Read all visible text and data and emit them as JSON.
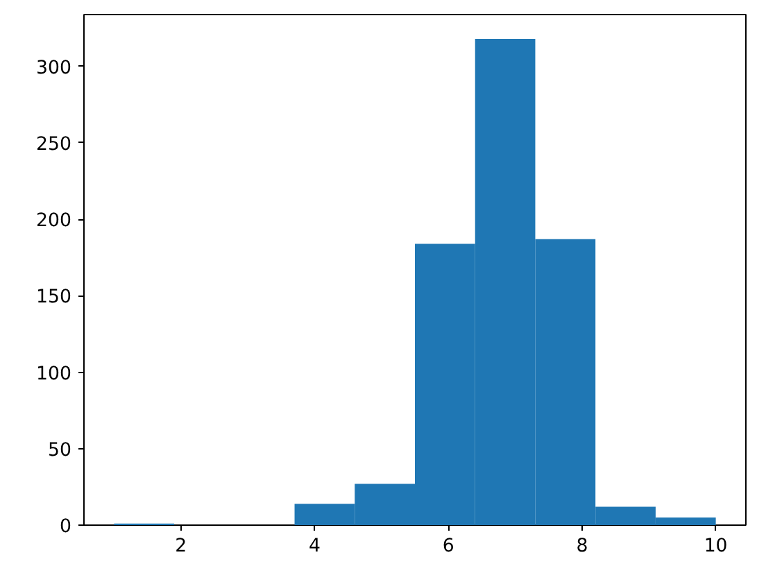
{
  "chart_data": {
    "type": "histogram",
    "bins": [
      1,
      1.9,
      2.8,
      3.7,
      4.6,
      5.5,
      6.4,
      7.3,
      8.2,
      9.1,
      10
    ],
    "values": [
      1,
      0,
      0,
      14,
      27,
      184,
      318,
      187,
      12,
      5
    ],
    "color": "#1f77b4",
    "xlim": [
      0.55,
      10.45
    ],
    "ylim": [
      0,
      333.9
    ],
    "xticks": [
      2,
      4,
      6,
      8,
      10
    ],
    "yticks": [
      0,
      50,
      100,
      150,
      200,
      250,
      300
    ],
    "grid": false
  }
}
